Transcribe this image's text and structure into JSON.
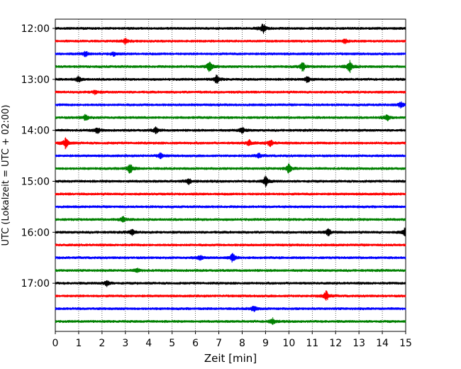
{
  "chart_data": {
    "type": "line",
    "title": "",
    "xlabel": "Zeit  [min]",
    "ylabel": "UTC (Lokalzeit = UTC + 02:00)",
    "xlim": [
      0,
      15
    ],
    "xticks": [
      0,
      1,
      2,
      3,
      4,
      5,
      6,
      7,
      8,
      9,
      10,
      11,
      12,
      13,
      14,
      15
    ],
    "xtick_labels": [
      "0",
      "1",
      "2",
      "3",
      "4",
      "5",
      "6",
      "7",
      "8",
      "9",
      "10",
      "11",
      "12",
      "13",
      "14",
      "15"
    ],
    "yticks": [
      "12:00",
      "13:00",
      "14:00",
      "15:00",
      "16:00",
      "17:00"
    ],
    "trace_interval_minutes": 15,
    "start_time": "12:00",
    "grid": "vertical dotted",
    "colors": [
      "#000000",
      "#ff0000",
      "#0000ff",
      "#008000"
    ],
    "traces": [
      {
        "time": "12:00",
        "color": "#000000",
        "events": [
          [
            8.9,
            5
          ]
        ]
      },
      {
        "time": "12:15",
        "color": "#ff0000",
        "events": [
          [
            3.0,
            2.5
          ],
          [
            12.4,
            2
          ]
        ]
      },
      {
        "time": "12:30",
        "color": "#0000ff",
        "events": [
          [
            1.3,
            2.5
          ],
          [
            2.5,
            2
          ]
        ]
      },
      {
        "time": "12:45",
        "color": "#008000",
        "events": [
          [
            6.6,
            6
          ],
          [
            10.6,
            4.5
          ],
          [
            12.6,
            6
          ]
        ]
      },
      {
        "time": "13:00",
        "color": "#000000",
        "events": [
          [
            1.0,
            3
          ],
          [
            6.9,
            4
          ],
          [
            10.8,
            3.5
          ]
        ]
      },
      {
        "time": "13:15",
        "color": "#ff0000",
        "events": [
          [
            1.7,
            2
          ]
        ]
      },
      {
        "time": "13:30",
        "color": "#0000ff",
        "events": [
          [
            14.8,
            3
          ]
        ]
      },
      {
        "time": "13:45",
        "color": "#008000",
        "events": [
          [
            1.3,
            3
          ],
          [
            14.2,
            3
          ]
        ]
      },
      {
        "time": "14:00",
        "color": "#000000",
        "events": [
          [
            1.8,
            3
          ],
          [
            4.3,
            3
          ],
          [
            8.0,
            3
          ]
        ]
      },
      {
        "time": "14:15",
        "color": "#ff0000",
        "events": [
          [
            0.45,
            5.5
          ],
          [
            8.3,
            3
          ],
          [
            9.2,
            3.5
          ]
        ]
      },
      {
        "time": "14:30",
        "color": "#0000ff",
        "events": [
          [
            4.5,
            2.5
          ],
          [
            8.7,
            2.5
          ]
        ]
      },
      {
        "time": "14:45",
        "color": "#008000",
        "events": [
          [
            3.2,
            5
          ],
          [
            10.0,
            4.5
          ]
        ]
      },
      {
        "time": "15:00",
        "color": "#000000",
        "events": [
          [
            5.7,
            3
          ],
          [
            9.0,
            5
          ]
        ]
      },
      {
        "time": "15:15",
        "color": "#ff0000",
        "events": []
      },
      {
        "time": "15:30",
        "color": "#0000ff",
        "events": []
      },
      {
        "time": "15:45",
        "color": "#008000",
        "events": [
          [
            2.9,
            3
          ]
        ]
      },
      {
        "time": "16:00",
        "color": "#000000",
        "events": [
          [
            3.3,
            3
          ],
          [
            11.7,
            3.5
          ],
          [
            15.0,
            6
          ]
        ]
      },
      {
        "time": "16:15",
        "color": "#ff0000",
        "events": []
      },
      {
        "time": "16:30",
        "color": "#0000ff",
        "events": [
          [
            6.2,
            2.5
          ],
          [
            7.6,
            5
          ]
        ]
      },
      {
        "time": "16:45",
        "color": "#008000",
        "events": [
          [
            3.5,
            2
          ]
        ]
      },
      {
        "time": "17:00",
        "color": "#000000",
        "events": [
          [
            2.2,
            3
          ]
        ]
      },
      {
        "time": "17:15",
        "color": "#ff0000",
        "events": [
          [
            11.6,
            5
          ]
        ]
      },
      {
        "time": "17:30",
        "color": "#0000ff",
        "events": [
          [
            8.5,
            3
          ]
        ]
      },
      {
        "time": "17:45",
        "color": "#008000",
        "events": [
          [
            9.3,
            3
          ]
        ]
      }
    ]
  }
}
